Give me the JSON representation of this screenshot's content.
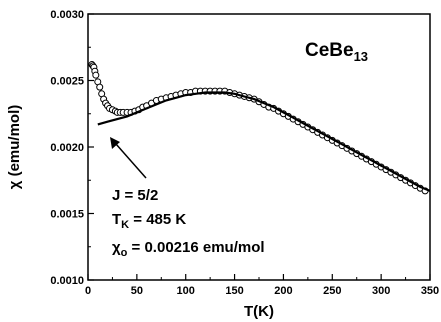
{
  "chart_data": {
    "type": "scatter",
    "title_main": "CeBe",
    "title_sub": "13",
    "xlabel": "T(K)",
    "ylabel": "χ (emu/mol)",
    "xlim": [
      0,
      350
    ],
    "ylim": [
      0.001,
      0.003
    ],
    "x_ticks": [
      "0",
      "50",
      "100",
      "150",
      "200",
      "250",
      "300",
      "350"
    ],
    "y_ticks": [
      "0.0010",
      "0.0015",
      "0.0020",
      "0.0025",
      "0.0030"
    ],
    "grid": false,
    "series": [
      {
        "kind": "scatter",
        "points": [
          [
            4,
            0.00262
          ],
          [
            5,
            0.00261
          ],
          [
            6,
            0.0026
          ],
          [
            7,
            0.00257
          ],
          [
            8,
            0.00254
          ],
          [
            10,
            0.00249
          ],
          [
            12,
            0.00245
          ],
          [
            14,
            0.0024
          ],
          [
            16,
            0.00236
          ],
          [
            18,
            0.00233
          ],
          [
            20,
            0.00231
          ],
          [
            22,
            0.00229
          ],
          [
            25,
            0.00228
          ],
          [
            28,
            0.00227
          ],
          [
            30,
            0.00226
          ],
          [
            33,
            0.00226
          ],
          [
            36,
            0.00226
          ],
          [
            40,
            0.00226
          ],
          [
            44,
            0.00226
          ],
          [
            48,
            0.00227
          ],
          [
            52,
            0.00228
          ],
          [
            56,
            0.0023
          ],
          [
            60,
            0.00231
          ],
          [
            65,
            0.00233
          ],
          [
            70,
            0.00235
          ],
          [
            75,
            0.00236
          ],
          [
            80,
            0.00237
          ],
          [
            85,
            0.00238
          ],
          [
            90,
            0.00239
          ],
          [
            95,
            0.0024
          ],
          [
            100,
            0.00241
          ],
          [
            105,
            0.00241
          ],
          [
            110,
            0.00242
          ],
          [
            115,
            0.00242
          ],
          [
            120,
            0.00242
          ],
          [
            125,
            0.00242
          ],
          [
            130,
            0.00242
          ],
          [
            135,
            0.00242
          ],
          [
            140,
            0.00242
          ],
          [
            145,
            0.00241
          ],
          [
            150,
            0.0024
          ],
          [
            155,
            0.00239
          ],
          [
            160,
            0.00238
          ],
          [
            165,
            0.00237
          ],
          [
            170,
            0.00236
          ],
          [
            175,
            0.00234
          ],
          [
            180,
            0.00232
          ],
          [
            185,
            0.0023
          ],
          [
            190,
            0.00229
          ],
          [
            195,
            0.00227
          ],
          [
            200,
            0.00225
          ],
          [
            205,
            0.00223
          ],
          [
            210,
            0.00221
          ],
          [
            215,
            0.00219
          ],
          [
            220,
            0.00217
          ],
          [
            225,
            0.00215
          ],
          [
            230,
            0.00213
          ],
          [
            235,
            0.00211
          ],
          [
            240,
            0.00209
          ],
          [
            245,
            0.00207
          ],
          [
            250,
            0.00205
          ],
          [
            255,
            0.00203
          ],
          [
            260,
            0.00201
          ],
          [
            265,
            0.00199
          ],
          [
            270,
            0.00197
          ],
          [
            275,
            0.00195
          ],
          [
            280,
            0.00193
          ],
          [
            285,
            0.00191
          ],
          [
            290,
            0.00189
          ],
          [
            295,
            0.00187
          ],
          [
            300,
            0.00185
          ],
          [
            305,
            0.00183
          ],
          [
            310,
            0.00181
          ],
          [
            315,
            0.00179
          ],
          [
            320,
            0.00177
          ],
          [
            325,
            0.00175
          ],
          [
            330,
            0.00173
          ],
          [
            335,
            0.00171
          ],
          [
            340,
            0.00169
          ],
          [
            345,
            0.00167
          ]
        ]
      },
      {
        "kind": "line",
        "points": [
          [
            10,
            0.00217
          ],
          [
            20,
            0.00219
          ],
          [
            30,
            0.00221
          ],
          [
            40,
            0.00223
          ],
          [
            50,
            0.00226
          ],
          [
            60,
            0.00229
          ],
          [
            70,
            0.00232
          ],
          [
            80,
            0.00235
          ],
          [
            90,
            0.00237
          ],
          [
            100,
            0.00239
          ],
          [
            110,
            0.0024
          ],
          [
            120,
            0.00241
          ],
          [
            130,
            0.00241
          ],
          [
            140,
            0.00241
          ],
          [
            150,
            0.0024
          ],
          [
            160,
            0.00238
          ],
          [
            170,
            0.00236
          ],
          [
            180,
            0.00233
          ],
          [
            190,
            0.0023
          ],
          [
            200,
            0.00226
          ],
          [
            210,
            0.00222
          ],
          [
            220,
            0.00218
          ],
          [
            230,
            0.00214
          ],
          [
            240,
            0.0021
          ],
          [
            250,
            0.00206
          ],
          [
            260,
            0.00202
          ],
          [
            270,
            0.00198
          ],
          [
            280,
            0.00194
          ],
          [
            290,
            0.0019
          ],
          [
            300,
            0.00186
          ],
          [
            310,
            0.00182
          ],
          [
            320,
            0.00178
          ],
          [
            330,
            0.00174
          ],
          [
            340,
            0.0017
          ],
          [
            350,
            0.00167
          ]
        ]
      }
    ],
    "annotations": {
      "line1": "J = 5/2",
      "line2_main": "T",
      "line2_sub": "K",
      "line2_rest": " = 485 K",
      "line3_main": "χ",
      "line3_sub": "o",
      "line3_rest": " = 0.00216 emu/mol"
    }
  }
}
